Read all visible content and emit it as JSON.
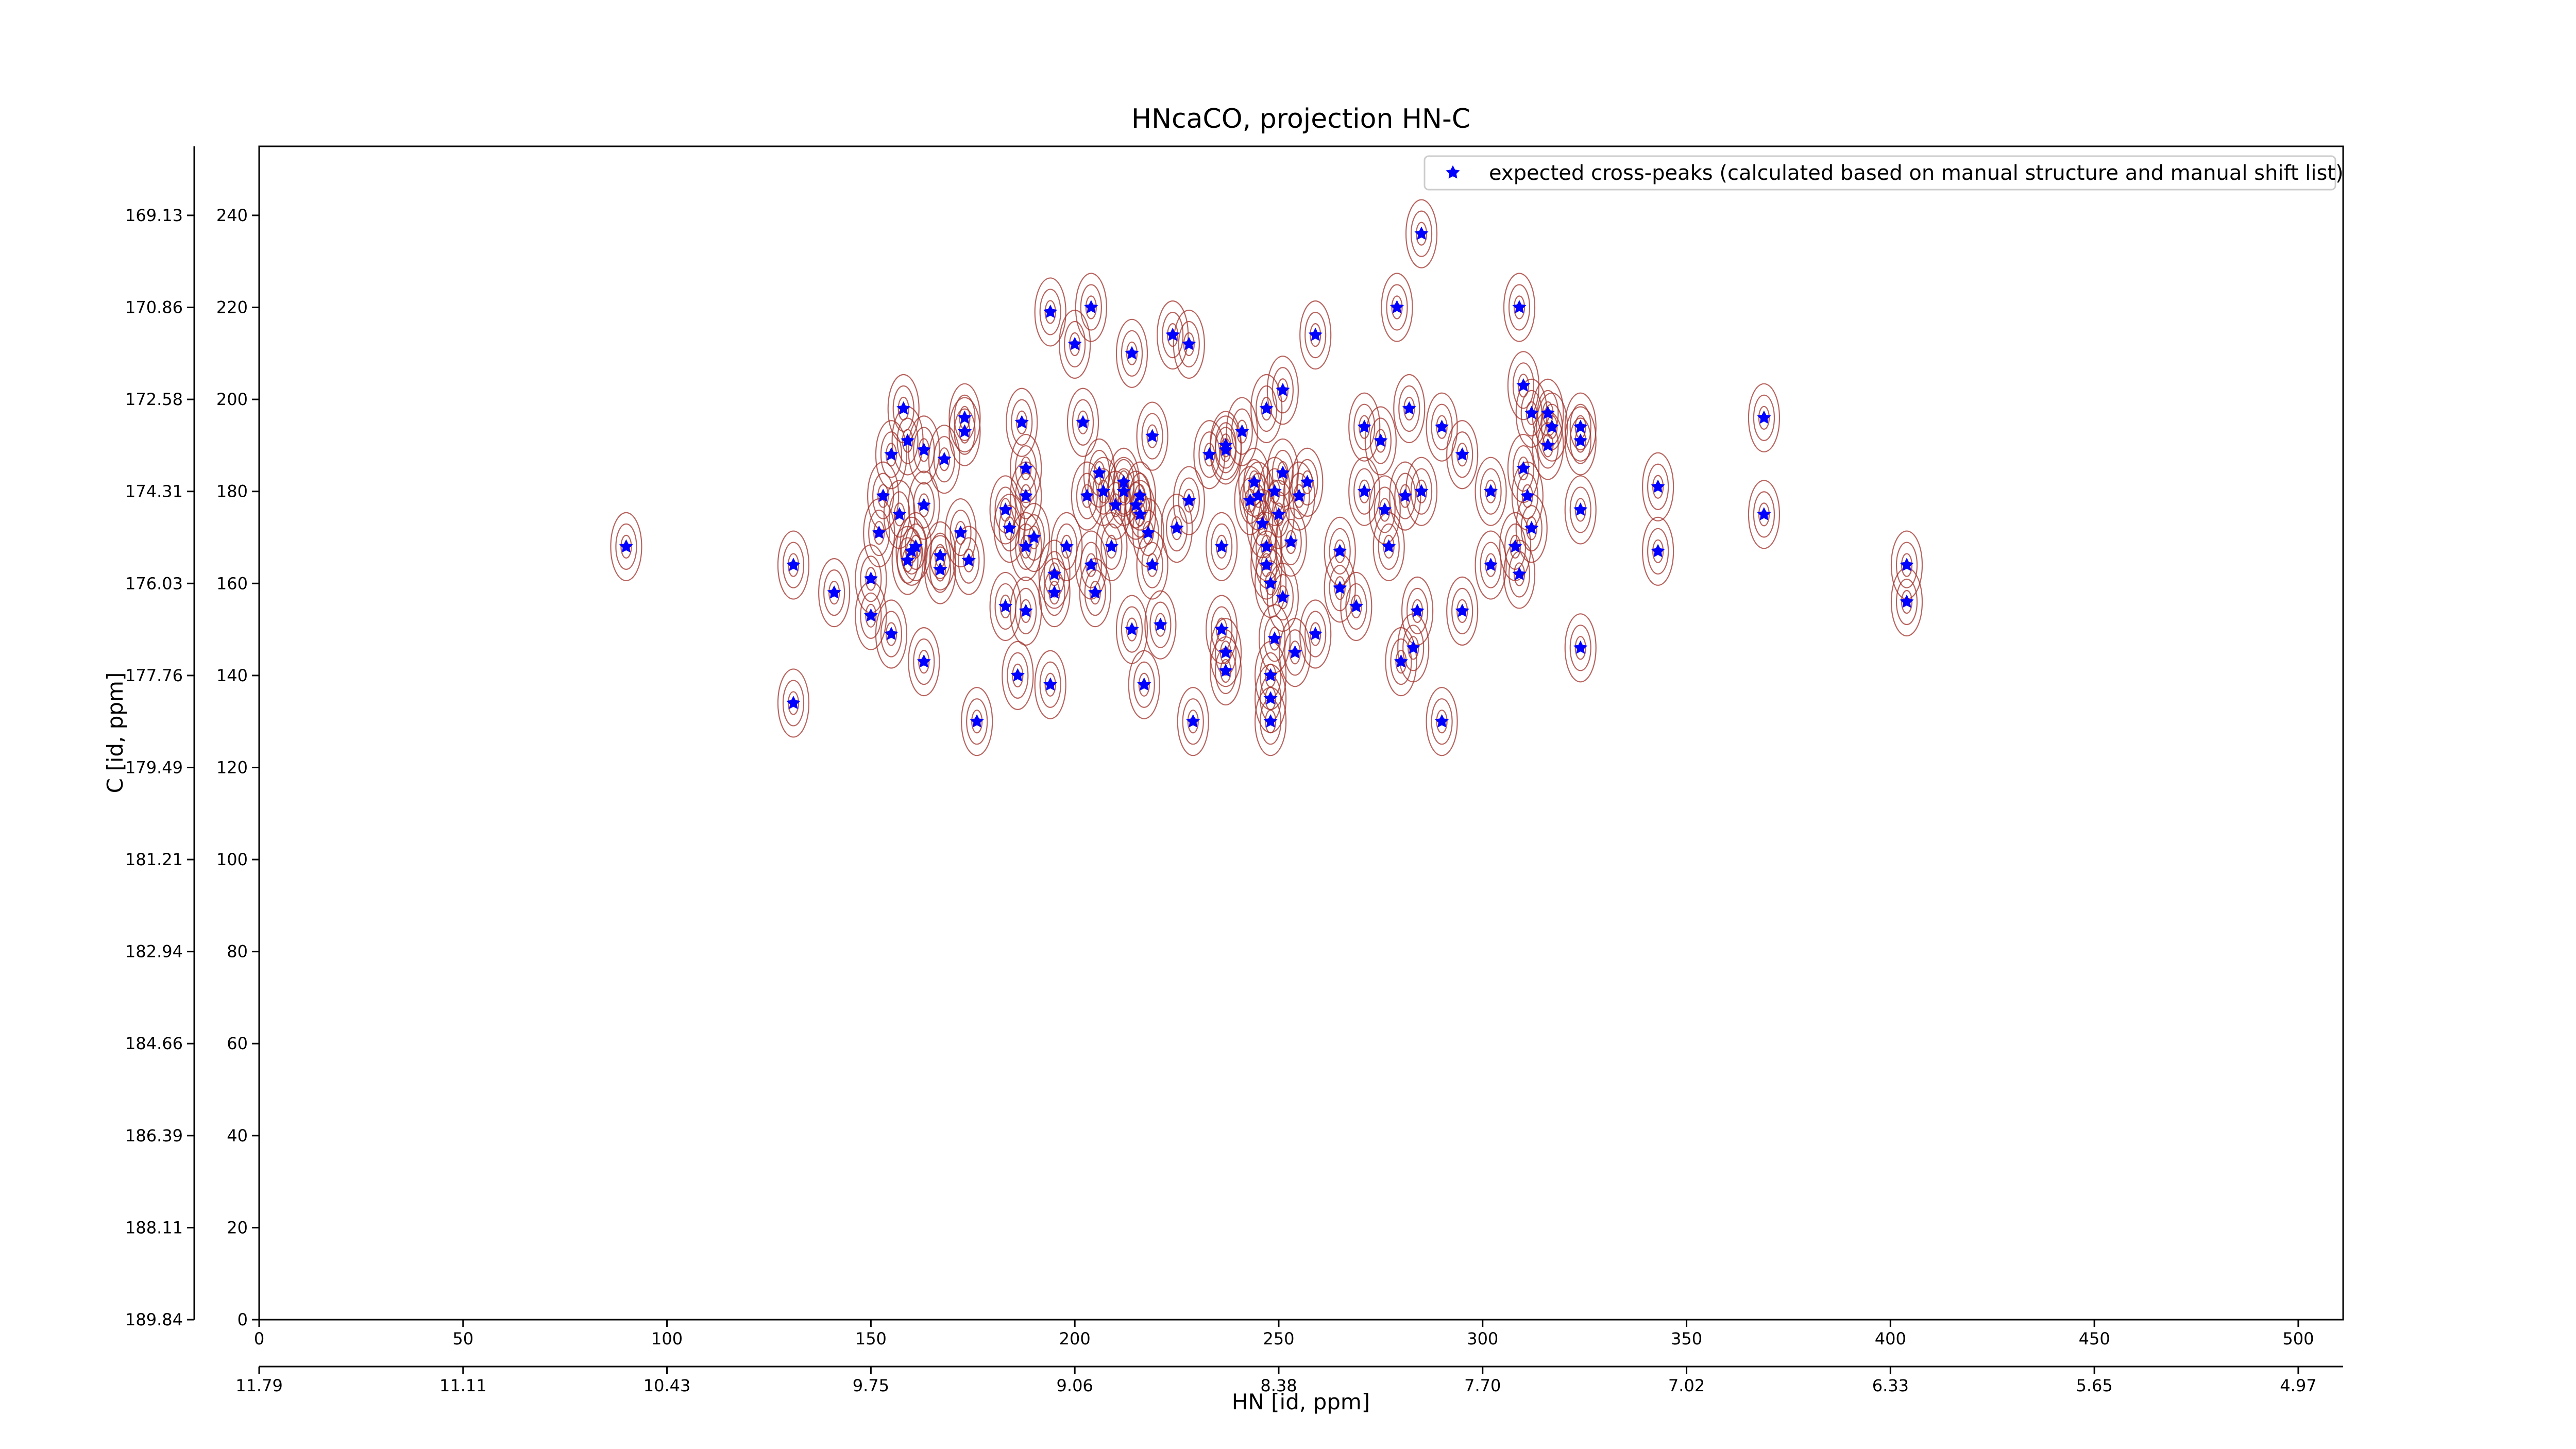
{
  "chart_data": {
    "type": "scatter",
    "title": "HNcaCO, projection HN-C",
    "xlabel": "HN [id, ppm]",
    "ylabel": "C [id, ppm]",
    "legend": "upper right",
    "series": [
      {
        "name": "expected cross-peaks (calculated based on manual structure and manual shift list)",
        "color": "#0000ff",
        "x": [
          90,
          131,
          131,
          141,
          150,
          150,
          152,
          153,
          155,
          155,
          157,
          158,
          159,
          159,
          160,
          161,
          163,
          163,
          163,
          167,
          167,
          168,
          173,
          173,
          172,
          174,
          176,
          183,
          183,
          184,
          187,
          186,
          188,
          188,
          188,
          188,
          190,
          194,
          194,
          195,
          195,
          198,
          200,
          202,
          203,
          204,
          204,
          206,
          205,
          207,
          209,
          210,
          212,
          212,
          214,
          214,
          216,
          215,
          216,
          219,
          218,
          219,
          217,
          221,
          224,
          225,
          228,
          228,
          229,
          233,
          236,
          236,
          237,
          237,
          237,
          237,
          241,
          243,
          244,
          245,
          246,
          247,
          247,
          247,
          248,
          248,
          248,
          248,
          249,
          249,
          250,
          251,
          251,
          251,
          253,
          254,
          255,
          257,
          259,
          259,
          265,
          265,
          269,
          271,
          271,
          275,
          276,
          277,
          279,
          280,
          281,
          282,
          283,
          284,
          285,
          285,
          290,
          290,
          295,
          295,
          302,
          302,
          308,
          309,
          309,
          310,
          310,
          311,
          312,
          312,
          316,
          316,
          317,
          324,
          324,
          324,
          324,
          343,
          343,
          369,
          369,
          404,
          404
        ],
        "y": [
          168,
          164,
          134,
          158,
          161,
          153,
          171,
          179,
          188,
          149,
          175,
          198,
          191,
          165,
          167,
          168,
          143,
          189,
          177,
          163,
          166,
          187,
          196,
          193,
          171,
          165,
          130,
          176,
          155,
          172,
          195,
          140,
          185,
          179,
          168,
          154,
          170,
          219,
          138,
          162,
          158,
          168,
          212,
          195,
          179,
          164,
          220,
          184,
          158,
          180,
          168,
          177,
          180,
          182,
          210,
          150,
          179,
          177,
          175,
          192,
          171,
          164,
          138,
          151,
          214,
          172,
          212,
          178,
          130,
          188,
          168,
          150,
          145,
          141,
          190,
          189,
          193,
          178,
          182,
          179,
          173,
          168,
          198,
          164,
          160,
          140,
          135,
          130,
          148,
          180,
          175,
          202,
          157,
          184,
          169,
          145,
          179,
          182,
          214,
          149,
          167,
          159,
          155,
          194,
          180,
          191,
          176,
          168,
          220,
          143,
          179,
          198,
          146,
          154,
          180,
          236,
          130,
          194,
          188,
          154,
          180,
          164,
          168,
          162,
          220,
          203,
          185,
          179,
          197,
          172,
          190,
          197,
          194,
          194,
          191,
          176,
          146,
          181,
          167,
          196,
          175,
          164,
          156
        ]
      }
    ],
    "xlim": [
      0,
      511
    ],
    "xticks": [
      0,
      50,
      100,
      150,
      200,
      250,
      300,
      350,
      400,
      450,
      500
    ],
    "ylim": [
      0,
      255
    ],
    "yticks": [
      0,
      20,
      40,
      60,
      80,
      100,
      120,
      140,
      160,
      180,
      200,
      220,
      240
    ],
    "x2lim": [
      0,
      511
    ],
    "x2ticks": [
      {
        "value": 0,
        "label": "11.79"
      },
      {
        "value": 50,
        "label": "11.11"
      },
      {
        "value": 100,
        "label": "10.43"
      },
      {
        "value": 150,
        "label": "9.75"
      },
      {
        "value": 200,
        "label": "9.06"
      },
      {
        "value": 250,
        "label": "8.38"
      },
      {
        "value": 300,
        "label": "7.70"
      },
      {
        "value": 350,
        "label": "7.02"
      },
      {
        "value": 400,
        "label": "6.33"
      },
      {
        "value": 450,
        "label": "5.65"
      },
      {
        "value": 500,
        "label": "4.97"
      }
    ],
    "y2lim": [
      0,
      255
    ],
    "y2ticks": [
      {
        "value": 0,
        "label": "189.84"
      },
      {
        "value": 20,
        "label": "188.11"
      },
      {
        "value": 40,
        "label": "186.39"
      },
      {
        "value": 60,
        "label": "184.66"
      },
      {
        "value": 80,
        "label": "182.94"
      },
      {
        "value": 100,
        "label": "181.21"
      },
      {
        "value": 120,
        "label": "179.49"
      },
      {
        "value": 140,
        "label": "177.76"
      },
      {
        "value": 160,
        "label": "176.03"
      },
      {
        "value": 180,
        "label": "174.31"
      },
      {
        "value": 200,
        "label": "172.58"
      },
      {
        "value": 220,
        "label": "170.86"
      },
      {
        "value": 240,
        "label": "169.13"
      }
    ]
  }
}
